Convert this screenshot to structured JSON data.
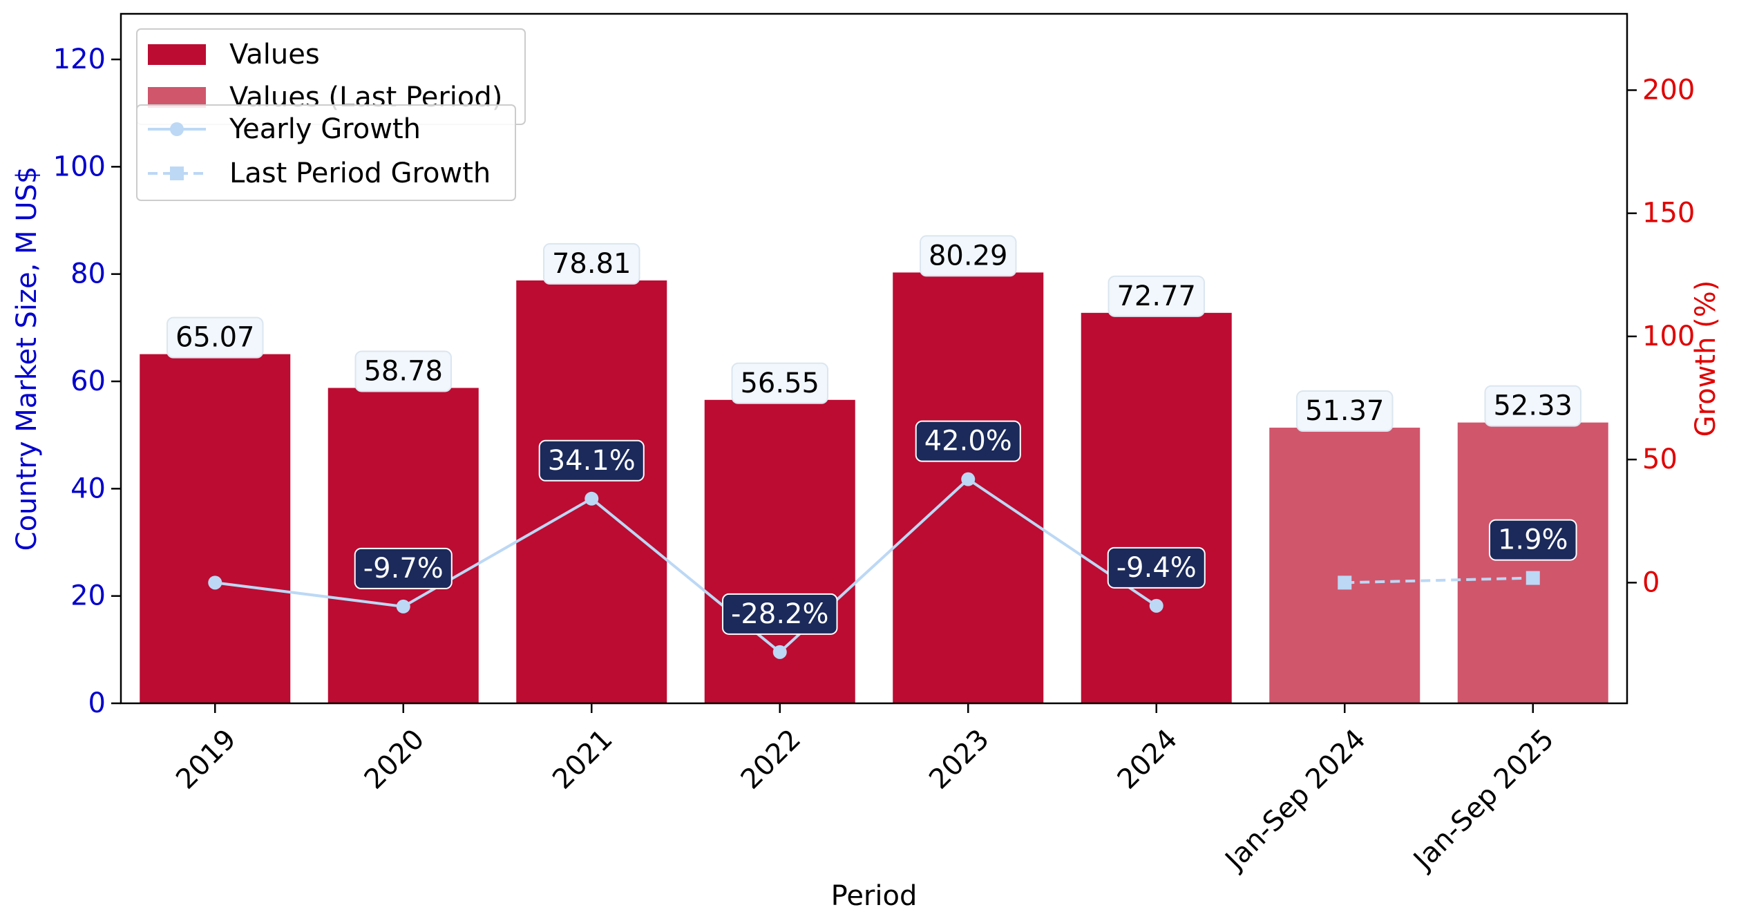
{
  "chart_data": {
    "type": "bar",
    "categories": [
      "2019",
      "2020",
      "2021",
      "2022",
      "2023",
      "2024",
      "Jan-Sep 2024",
      "Jan-Sep 2025"
    ],
    "series": [
      {
        "name": "Values",
        "kind": "bar",
        "axis": "left",
        "color": "#bc0c32",
        "values": [
          65.07,
          58.78,
          78.81,
          56.55,
          80.29,
          72.77,
          null,
          null
        ],
        "labels": [
          "65.07",
          "58.78",
          "78.81",
          "56.55",
          "80.29",
          "72.77",
          "",
          ""
        ]
      },
      {
        "name": "Values (Last Period)",
        "kind": "bar",
        "axis": "left",
        "color": "#d0566c",
        "values": [
          null,
          null,
          null,
          null,
          null,
          null,
          51.37,
          52.33
        ],
        "labels": [
          "",
          "",
          "",
          "",
          "",
          "",
          "51.37",
          "52.33"
        ]
      },
      {
        "name": "Yearly Growth",
        "kind": "line",
        "axis": "right",
        "color": "#bcd8f5",
        "marker": "circle",
        "values": [
          0,
          -9.7,
          34.1,
          -28.2,
          42.0,
          -9.4,
          null,
          null
        ],
        "labels": [
          "",
          "-9.7%",
          "34.1%",
          "-28.2%",
          "42.0%",
          "-9.4%",
          "",
          ""
        ]
      },
      {
        "name": "Last Period Growth",
        "kind": "line",
        "dashed": true,
        "axis": "right",
        "color": "#bcd8f5",
        "marker": "square",
        "values": [
          null,
          null,
          null,
          null,
          null,
          null,
          0,
          1.9
        ],
        "labels": [
          "",
          "",
          "",
          "",
          "",
          "",
          "",
          "1.9%"
        ]
      }
    ],
    "xlabel": "Period",
    "ylabel": "Country Market Size, M US$",
    "ylabel_right": "Growth (%)",
    "ylim": [
      0,
      128.5
    ],
    "ylim_right": [
      -49,
      231
    ],
    "yticks": [
      0,
      20,
      40,
      60,
      80,
      100,
      120
    ],
    "yticks_right": [
      0,
      50,
      100,
      150,
      200
    ],
    "grid": false,
    "legend": "top-left",
    "colors": {
      "left_axis": "#0000cc",
      "right_axis": "#e00000",
      "growth_label_bg": "#1b2a5a",
      "value_label_bg": "#f1f7fc"
    }
  }
}
